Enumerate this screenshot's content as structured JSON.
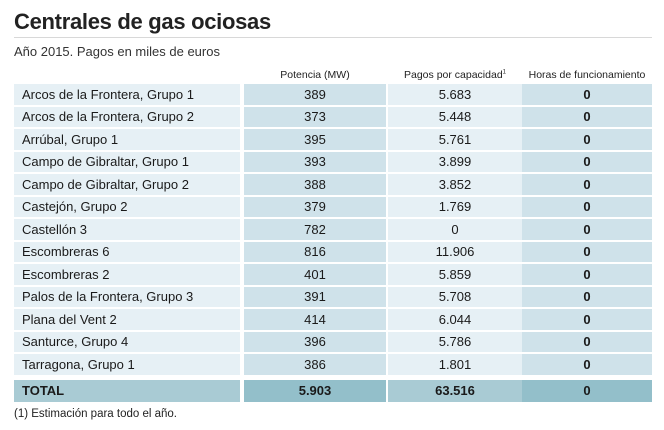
{
  "title": "Centrales de gas ociosas",
  "subtitle": "Año 2015. Pagos en miles de euros",
  "headers": {
    "potencia": "Potencia (MW)",
    "pagos": "Pagos por capacidad",
    "pagos_sup": "1",
    "horas": "Horas de funcionamiento"
  },
  "chart_data": {
    "type": "table",
    "title": "Centrales de gas ociosas",
    "subtitle": "Año 2015. Pagos en miles de euros",
    "columns": [
      "",
      "Potencia (MW)",
      "Pagos por capacidad",
      "Horas de funcionamiento"
    ],
    "rows": [
      {
        "name": "Arcos de la Frontera, Grupo 1",
        "potencia": "389",
        "pagos": "5.683",
        "horas": "0"
      },
      {
        "name": "Arcos de la Frontera, Grupo 2",
        "potencia": "373",
        "pagos": "5.448",
        "horas": "0"
      },
      {
        "name": "Arrúbal, Grupo 1",
        "potencia": "395",
        "pagos": "5.761",
        "horas": "0"
      },
      {
        "name": "Campo de Gibraltar, Grupo 1",
        "potencia": "393",
        "pagos": "3.899",
        "horas": "0"
      },
      {
        "name": "Campo de Gibraltar, Grupo 2",
        "potencia": "388",
        "pagos": "3.852",
        "horas": "0"
      },
      {
        "name": "Castejón, Grupo 2",
        "potencia": "379",
        "pagos": "1.769",
        "horas": "0"
      },
      {
        "name": "Castellón 3",
        "potencia": "782",
        "pagos": "0",
        "horas": "0"
      },
      {
        "name": "Escombreras 6",
        "potencia": "816",
        "pagos": "11.906",
        "horas": "0"
      },
      {
        "name": "Escombreras 2",
        "potencia": "401",
        "pagos": "5.859",
        "horas": "0"
      },
      {
        "name": "Palos de la Frontera, Grupo 3",
        "potencia": "391",
        "pagos": "5.708",
        "horas": "0"
      },
      {
        "name": "Plana del Vent 2",
        "potencia": "414",
        "pagos": "6.044",
        "horas": "0"
      },
      {
        "name": "Santurce, Grupo 4",
        "potencia": "396",
        "pagos": "5.786",
        "horas": "0"
      },
      {
        "name": "Tarragona, Grupo 1",
        "potencia": "386",
        "pagos": "1.801",
        "horas": "0"
      }
    ],
    "total": {
      "name": "TOTAL",
      "potencia": "5.903",
      "pagos": "63.516",
      "horas": "0"
    }
  },
  "footnote": "(1) Estimación para todo el año.",
  "colors": {
    "row_light": "#e6f0f5",
    "row_dark": "#cfe2ea",
    "total_light": "#a9cbd4",
    "total_dark": "#93bfca"
  }
}
